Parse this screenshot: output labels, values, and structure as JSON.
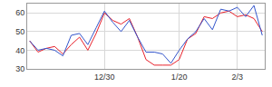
{
  "chart_data": {
    "type": "line",
    "categories": [
      null,
      null,
      null,
      null,
      null,
      null,
      null,
      null,
      null,
      "12/30",
      null,
      null,
      null,
      null,
      null,
      null,
      null,
      null,
      "1/20",
      null,
      null,
      null,
      null,
      null,
      null,
      "2/3",
      null,
      null,
      null
    ],
    "series": [
      {
        "color": "#e8202a",
        "values": [
          45,
          39,
          41,
          42,
          38,
          43,
          47,
          40,
          49,
          60,
          56,
          54,
          57,
          47,
          35,
          32,
          32,
          32,
          35,
          46,
          49,
          58,
          57,
          60,
          61,
          58,
          59,
          57,
          50
        ]
      },
      {
        "color": "#3355cc",
        "values": [
          45,
          40,
          41,
          40,
          37,
          48,
          49,
          43,
          52,
          61,
          55,
          50,
          56,
          47,
          39,
          39,
          38,
          33,
          40,
          46,
          50,
          57,
          51,
          62,
          61,
          63,
          58,
          64,
          48
        ]
      }
    ],
    "ylim": [
      30,
      65
    ],
    "yticks": [
      30,
      40,
      50,
      60
    ],
    "grid": true
  }
}
